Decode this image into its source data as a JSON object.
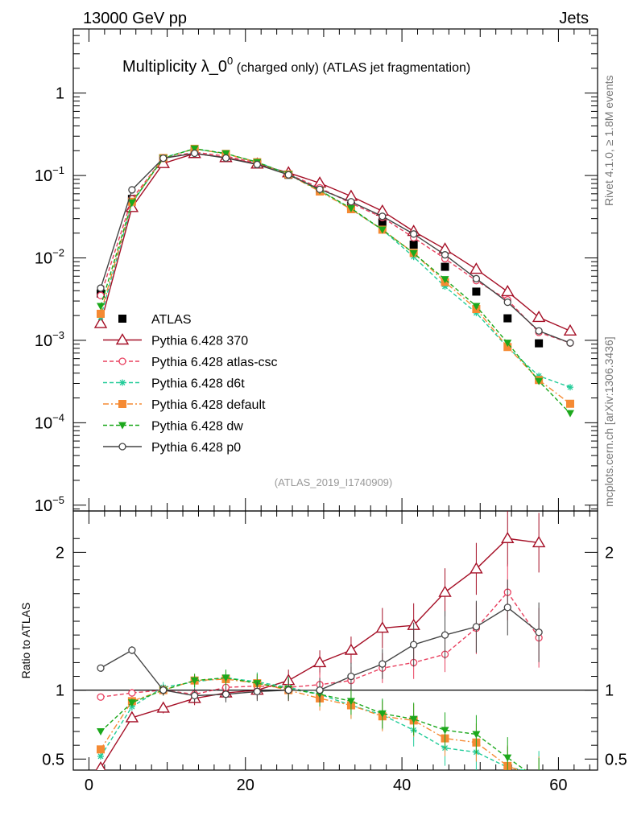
{
  "header": {
    "left": "13000 GeV pp",
    "right": "Jets",
    "title_main": "Multiplicity λ_0",
    "title_sup": "0",
    "title_rest": " (charged only) (ATLAS jet fragmentation)",
    "side_top": "Rivet 4.1.0, ≥ 1.8M events",
    "side_bottom": "mcplots.cern.ch [arXiv:1306.3436]",
    "analysis": "(ATLAS_2019_I1740909)"
  },
  "colors": {
    "data": "#000000",
    "p370": "#a50f26",
    "atlas_csc": "#e8405f",
    "d6t": "#22cc99",
    "default": "#f58a33",
    "dw": "#1ca81c",
    "p0": "#444444"
  },
  "chart_data": [
    {
      "type": "line",
      "name": "main",
      "yscale": "log",
      "xlim": [
        -2,
        65
      ],
      "ylim": [
        8.5e-06,
        6
      ],
      "y_ticks": [
        {
          "value": 1,
          "base": "1",
          "exp": ""
        },
        {
          "value": 0.1,
          "base": "10",
          "exp": "−1"
        },
        {
          "value": 0.01,
          "base": "10",
          "exp": "−2"
        },
        {
          "value": 0.001,
          "base": "10",
          "exp": "−3"
        },
        {
          "value": 0.0001,
          "base": "10",
          "exp": "−4"
        },
        {
          "value": 1e-05,
          "base": "10",
          "exp": "−5"
        }
      ],
      "x": [
        1.5,
        5.5,
        9.5,
        13.5,
        17.5,
        21.5,
        25.5,
        29.5,
        33.5,
        37.5,
        41.5,
        45.5,
        49.5,
        53.5,
        57.5,
        61.5
      ],
      "series": [
        {
          "key": "data",
          "name": "ATLAS",
          "style": "data",
          "marker": "square",
          "values": [
            0.0037,
            0.052,
            0.162,
            0.198,
            0.168,
            0.138,
            0.102,
            0.068,
            0.043,
            0.027,
            0.0145,
            0.0078,
            0.0039,
            0.00185,
            0.00092,
            null
          ]
        },
        {
          "key": "p370",
          "name": "Pythia 6.428 370",
          "style": "solid",
          "marker": "triangle-open",
          "values": [
            0.0016,
            0.041,
            0.14,
            0.185,
            0.165,
            0.138,
            0.108,
            0.081,
            0.056,
            0.037,
            0.021,
            0.0128,
            0.0073,
            0.0039,
            0.0019,
            0.0013
          ]
        },
        {
          "key": "atlas_csc",
          "name": "Pythia 6.428 atlas-csc",
          "style": "dash",
          "marker": "circle-open",
          "values": [
            0.0035,
            0.052,
            0.162,
            0.192,
            0.172,
            0.142,
            0.104,
            0.071,
            0.046,
            0.031,
            0.0176,
            0.0098,
            0.0053,
            0.0031,
            0.00125,
            0.00093
          ]
        },
        {
          "key": "d6t",
          "name": "Pythia 6.428 d6t",
          "style": "dash",
          "marker": "star",
          "values": [
            0.0019,
            0.046,
            0.165,
            0.211,
            0.183,
            0.146,
            0.104,
            0.066,
            0.039,
            0.022,
            0.0103,
            0.0045,
            0.00215,
            0.00082,
            0.00037,
            0.00027
          ]
        },
        {
          "key": "default",
          "name": "Pythia 6.428 default",
          "style": "dashdot",
          "marker": "square",
          "values": [
            0.0021,
            0.048,
            0.163,
            0.211,
            0.183,
            0.145,
            0.103,
            0.064,
            0.039,
            0.022,
            0.0115,
            0.0051,
            0.0024,
            0.00083,
            0.00033,
            0.00017
          ]
        },
        {
          "key": "dw",
          "name": "Pythia 6.428 dw",
          "style": "dash",
          "marker": "triangle-down",
          "values": [
            0.0026,
            0.047,
            0.162,
            0.212,
            0.185,
            0.145,
            0.103,
            0.066,
            0.04,
            0.022,
            0.0114,
            0.0055,
            0.0026,
            0.00093,
            0.00032,
            0.00013
          ]
        },
        {
          "key": "p0",
          "name": "Pythia 6.428 p0",
          "style": "solid",
          "marker": "circle-open",
          "values": [
            0.0043,
            0.067,
            0.162,
            0.186,
            0.163,
            0.136,
            0.102,
            0.068,
            0.048,
            0.032,
            0.0195,
            0.0109,
            0.0056,
            0.0029,
            0.0013,
            0.00093
          ]
        }
      ]
    },
    {
      "type": "line",
      "name": "ratio",
      "ylabel": "Ratio to ATLAS",
      "xlim": [
        -2,
        65
      ],
      "ylim": [
        0.42,
        2.3
      ],
      "x_ticks": [
        0,
        20,
        40,
        60
      ],
      "y_ticks": [
        0.5,
        1,
        2
      ],
      "y_tick_labels": [
        "0.5",
        "1",
        "2"
      ],
      "reference": 1,
      "x": [
        1.5,
        5.5,
        9.5,
        13.5,
        17.5,
        21.5,
        25.5,
        29.5,
        33.5,
        37.5,
        41.5,
        45.5,
        49.5,
        53.5,
        57.5
      ],
      "series": [
        {
          "key": "p370",
          "values": [
            0.435,
            0.8,
            0.87,
            0.94,
            0.98,
            1.0,
            1.07,
            1.2,
            1.29,
            1.45,
            1.47,
            1.71,
            1.88,
            2.1,
            2.07
          ]
        },
        {
          "key": "atlas_csc",
          "values": [
            0.95,
            0.98,
            1.0,
            0.97,
            1.02,
            1.03,
            1.02,
            1.04,
            1.07,
            1.16,
            1.2,
            1.26,
            1.45,
            1.71,
            1.38
          ]
        },
        {
          "key": "d6t",
          "values": [
            0.52,
            0.88,
            1.02,
            1.06,
            1.09,
            1.06,
            1.02,
            0.97,
            0.89,
            0.82,
            0.71,
            0.58,
            0.55,
            0.44,
            0.4
          ]
        },
        {
          "key": "default",
          "values": [
            0.57,
            0.92,
            1.0,
            1.07,
            1.08,
            1.05,
            1.0,
            0.94,
            0.89,
            0.81,
            0.78,
            0.65,
            0.62,
            0.45,
            0.36
          ]
        },
        {
          "key": "dw",
          "values": [
            0.7,
            0.91,
            1.0,
            1.07,
            1.09,
            1.05,
            1.01,
            0.97,
            0.92,
            0.83,
            0.79,
            0.71,
            0.68,
            0.51,
            0.35
          ]
        },
        {
          "key": "p0",
          "values": [
            1.16,
            1.29,
            1.0,
            0.96,
            0.97,
            0.99,
            1.0,
            1.0,
            1.1,
            1.19,
            1.33,
            1.4,
            1.46,
            1.6,
            1.42
          ]
        }
      ]
    }
  ]
}
